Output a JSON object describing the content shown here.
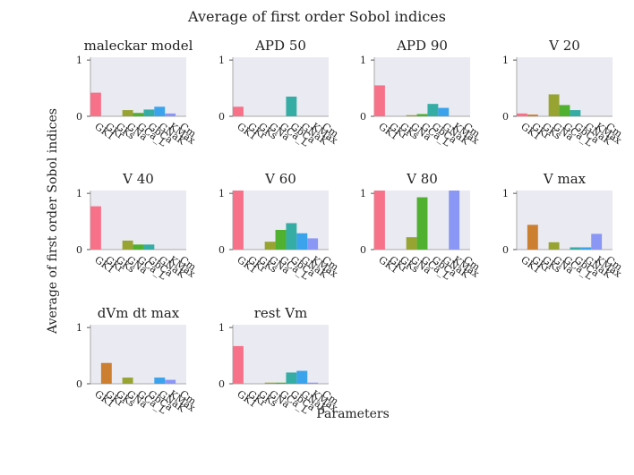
{
  "title": "Average of first order Sobol indices",
  "xlabel": "Parameters",
  "ylabel": "Average of first order Sobol indices",
  "parameters": [
    "GK1",
    "GKr",
    "GKs",
    "GNa",
    "GCa_L",
    "GbCa",
    "GNaK",
    "KMax",
    "Cm"
  ],
  "colors": [
    "#f77189",
    "#cc7f31",
    "#c08a32",
    "#97a431",
    "#50b131",
    "#36ada4",
    "#3ba3ec",
    "#8b97f4",
    "#f564e4"
  ],
  "chart_data": [
    {
      "type": "bar",
      "title": "maleckar model",
      "ylim": [
        0,
        1.05
      ],
      "yticks": [
        0,
        1
      ],
      "values": [
        0.42,
        0.0,
        0.0,
        0.11,
        0.06,
        0.12,
        0.17,
        0.05,
        0.0
      ]
    },
    {
      "type": "bar",
      "title": "APD 50",
      "ylim": [
        0,
        1.05
      ],
      "yticks": [
        0,
        1
      ],
      "values": [
        0.17,
        0.0,
        0.0,
        0.0,
        0.0,
        0.35,
        0.0,
        0.0,
        0.0
      ]
    },
    {
      "type": "bar",
      "title": "APD 90",
      "ylim": [
        0,
        1.05
      ],
      "yticks": [
        0,
        1
      ],
      "values": [
        0.55,
        0.0,
        0.0,
        0.02,
        0.04,
        0.22,
        0.15,
        0.0,
        0.0
      ]
    },
    {
      "type": "bar",
      "title": "V 20",
      "ylim": [
        0,
        1.05
      ],
      "yticks": [
        0,
        1
      ],
      "values": [
        0.05,
        0.03,
        0.0,
        0.39,
        0.2,
        0.11,
        0.0,
        0.0,
        0.0
      ]
    },
    {
      "type": "bar",
      "title": "V 40",
      "ylim": [
        0,
        1.05
      ],
      "yticks": [
        0,
        1
      ],
      "values": [
        0.77,
        0.0,
        0.0,
        0.16,
        0.09,
        0.09,
        0.0,
        0.0,
        0.0
      ]
    },
    {
      "type": "bar",
      "title": "V 60",
      "ylim": [
        0,
        1.05
      ],
      "yticks": [
        0,
        1
      ],
      "values": [
        1.05,
        0.0,
        0.0,
        0.14,
        0.35,
        0.47,
        0.29,
        0.2,
        0.0
      ]
    },
    {
      "type": "bar",
      "title": "V 80",
      "ylim": [
        0,
        1.05
      ],
      "yticks": [
        0,
        1
      ],
      "values": [
        1.05,
        0.0,
        0.0,
        0.22,
        0.93,
        0.0,
        0.0,
        1.05,
        0.0
      ]
    },
    {
      "type": "bar",
      "title": "V max",
      "ylim": [
        0,
        1.05
      ],
      "yticks": [
        0,
        1
      ],
      "values": [
        0.0,
        0.44,
        0.0,
        0.13,
        0.0,
        0.04,
        0.04,
        0.28,
        0.0
      ]
    },
    {
      "type": "bar",
      "title": "dVm dt max",
      "ylim": [
        0,
        1.05
      ],
      "yticks": [
        0,
        1
      ],
      "values": [
        0.0,
        0.37,
        0.0,
        0.11,
        0.0,
        0.0,
        0.11,
        0.07,
        0.0
      ]
    },
    {
      "type": "bar",
      "title": "rest Vm",
      "ylim": [
        0,
        1.05
      ],
      "yticks": [
        0,
        1
      ],
      "values": [
        0.67,
        0.0,
        0.0,
        0.02,
        0.02,
        0.2,
        0.23,
        0.02,
        0.0
      ]
    }
  ]
}
